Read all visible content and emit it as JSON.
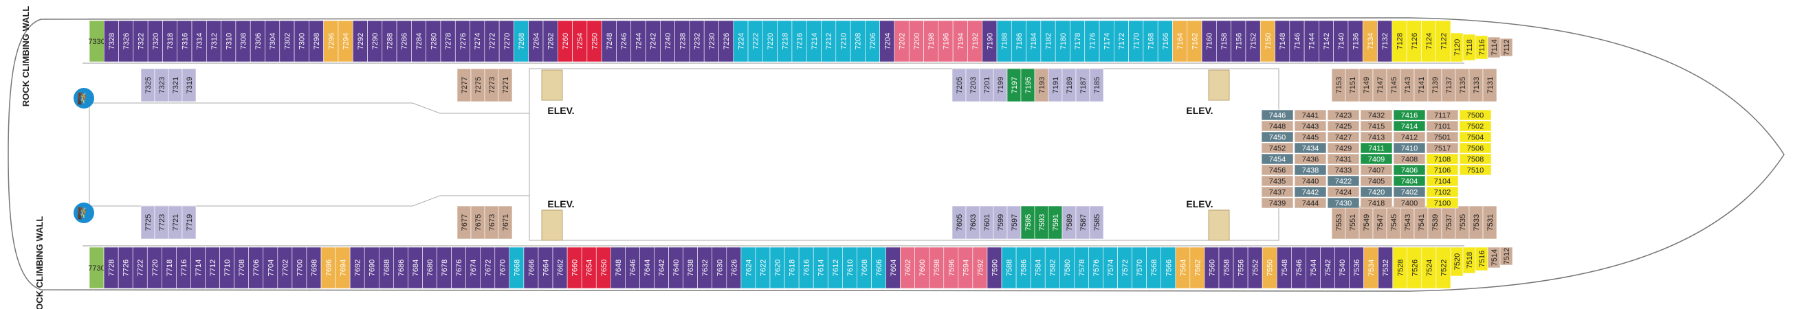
{
  "labels": {
    "rock_climbing_wall": "ROCK CLIMBING WALL",
    "elevator": "ELEV."
  },
  "colors": {
    "green_light": "#8bbe57",
    "purple": "#5b3d8f",
    "orange": "#f0b34a",
    "teal": "#1ab3cf",
    "red": "#e0213f",
    "pink": "#e86c86",
    "lavender": "#b9b6d8",
    "tan": "#cdac97",
    "slate": "#5f7f8c",
    "green": "#1e9548",
    "yellow": "#f5e81b"
  },
  "top_row": [
    {
      "n": "7330",
      "c": "green_light",
      "acc": true
    },
    {
      "n": "7328",
      "c": "purple"
    },
    {
      "n": "7326",
      "c": "purple"
    },
    {
      "n": "7322",
      "c": "purple"
    },
    {
      "n": "7320",
      "c": "purple"
    },
    {
      "n": "7318",
      "c": "purple"
    },
    {
      "n": "7316",
      "c": "purple"
    },
    {
      "n": "7314",
      "c": "purple"
    },
    {
      "n": "7312",
      "c": "purple"
    },
    {
      "n": "7310",
      "c": "purple"
    },
    {
      "n": "7308",
      "c": "purple"
    },
    {
      "n": "7306",
      "c": "purple"
    },
    {
      "n": "7304",
      "c": "purple"
    },
    {
      "n": "7302",
      "c": "purple"
    },
    {
      "n": "7300",
      "c": "purple"
    },
    {
      "n": "7298",
      "c": "purple"
    },
    {
      "n": "7296",
      "c": "orange"
    },
    {
      "n": "7294",
      "c": "orange"
    },
    {
      "n": "7292",
      "c": "purple"
    },
    {
      "n": "7290",
      "c": "purple"
    },
    {
      "n": "7288",
      "c": "purple"
    },
    {
      "n": "7286",
      "c": "purple"
    },
    {
      "n": "7284",
      "c": "purple"
    },
    {
      "n": "7280",
      "c": "purple"
    },
    {
      "n": "7278",
      "c": "purple"
    },
    {
      "n": "7276",
      "c": "purple"
    },
    {
      "n": "7274",
      "c": "purple"
    },
    {
      "n": "7272",
      "c": "purple"
    },
    {
      "n": "7270",
      "c": "purple"
    },
    {
      "n": "7268",
      "c": "teal"
    },
    {
      "n": "7264",
      "c": "purple"
    },
    {
      "n": "7262",
      "c": "purple"
    },
    {
      "n": "7260",
      "c": "red"
    },
    {
      "n": "7254",
      "c": "red"
    },
    {
      "n": "7250",
      "c": "red"
    },
    {
      "n": "7248",
      "c": "purple"
    },
    {
      "n": "7246",
      "c": "purple"
    },
    {
      "n": "7244",
      "c": "purple"
    },
    {
      "n": "7242",
      "c": "purple"
    },
    {
      "n": "7240",
      "c": "purple"
    },
    {
      "n": "7238",
      "c": "purple"
    },
    {
      "n": "7232",
      "c": "purple"
    },
    {
      "n": "7230",
      "c": "purple",
      "acc": true
    },
    {
      "n": "7226",
      "c": "purple",
      "acc": true
    },
    {
      "n": "7224",
      "c": "teal"
    },
    {
      "n": "7222",
      "c": "teal"
    },
    {
      "n": "7220",
      "c": "teal"
    },
    {
      "n": "7218",
      "c": "teal"
    },
    {
      "n": "7216",
      "c": "teal"
    },
    {
      "n": "7214",
      "c": "teal"
    },
    {
      "n": "7212",
      "c": "teal"
    },
    {
      "n": "7210",
      "c": "teal"
    },
    {
      "n": "7208",
      "c": "teal"
    },
    {
      "n": "7206",
      "c": "teal"
    },
    {
      "n": "7204",
      "c": "purple"
    },
    {
      "n": "7202",
      "c": "pink"
    },
    {
      "n": "7200",
      "c": "pink"
    },
    {
      "n": "7198",
      "c": "pink"
    },
    {
      "n": "7196",
      "c": "pink"
    },
    {
      "n": "7194",
      "c": "pink"
    },
    {
      "n": "7192",
      "c": "pink"
    },
    {
      "n": "7190",
      "c": "purple"
    },
    {
      "n": "7188",
      "c": "teal"
    },
    {
      "n": "7186",
      "c": "teal"
    },
    {
      "n": "7184",
      "c": "teal"
    },
    {
      "n": "7182",
      "c": "teal"
    },
    {
      "n": "7180",
      "c": "teal"
    },
    {
      "n": "7178",
      "c": "teal"
    },
    {
      "n": "7176",
      "c": "teal"
    },
    {
      "n": "7174",
      "c": "teal"
    },
    {
      "n": "7172",
      "c": "teal"
    },
    {
      "n": "7170",
      "c": "teal"
    },
    {
      "n": "7168",
      "c": "teal"
    },
    {
      "n": "7166",
      "c": "teal"
    },
    {
      "n": "7164",
      "c": "orange"
    },
    {
      "n": "7162",
      "c": "orange"
    },
    {
      "n": "7160",
      "c": "purple"
    },
    {
      "n": "7158",
      "c": "purple"
    },
    {
      "n": "7156",
      "c": "purple"
    },
    {
      "n": "7152",
      "c": "purple"
    },
    {
      "n": "7150",
      "c": "orange"
    },
    {
      "n": "7148",
      "c": "purple"
    },
    {
      "n": "7146",
      "c": "purple"
    },
    {
      "n": "7144",
      "c": "purple"
    },
    {
      "n": "7142",
      "c": "purple"
    },
    {
      "n": "7140",
      "c": "purple"
    },
    {
      "n": "7136",
      "c": "purple"
    },
    {
      "n": "7134",
      "c": "orange"
    },
    {
      "n": "7132",
      "c": "purple"
    },
    {
      "n": "7128",
      "c": "yellow"
    },
    {
      "n": "7126",
      "c": "yellow"
    },
    {
      "n": "7124",
      "c": "yellow"
    },
    {
      "n": "7122",
      "c": "yellow"
    }
  ],
  "top_end": [
    {
      "n": "7120",
      "c": "yellow"
    },
    {
      "n": "7118",
      "c": "yellow"
    },
    {
      "n": "7116",
      "c": "yellow"
    },
    {
      "n": "7114",
      "c": "tan"
    },
    {
      "n": "7112",
      "c": "tan"
    }
  ],
  "top_inner": [
    {
      "n": "7325",
      "c": "lavender"
    },
    {
      "n": "7323",
      "c": "lavender"
    },
    {
      "n": "7321",
      "c": "lavender"
    },
    {
      "n": "7319",
      "c": "lavender"
    },
    {
      "n": "7277",
      "c": "tan"
    },
    {
      "n": "7275",
      "c": "tan"
    },
    {
      "n": "7273",
      "c": "tan"
    },
    {
      "n": "7271",
      "c": "tan"
    },
    {
      "n": "7205",
      "c": "lavender"
    },
    {
      "n": "7203",
      "c": "lavender"
    },
    {
      "n": "7201",
      "c": "lavender"
    },
    {
      "n": "7199",
      "c": "lavender"
    },
    {
      "n": "7197",
      "c": "green"
    },
    {
      "n": "7195",
      "c": "green"
    },
    {
      "n": "7193",
      "c": "tan"
    },
    {
      "n": "7191",
      "c": "lavender"
    },
    {
      "n": "7189",
      "c": "lavender"
    },
    {
      "n": "7187",
      "c": "lavender"
    },
    {
      "n": "7185",
      "c": "lavender"
    },
    {
      "n": "7153",
      "c": "tan"
    },
    {
      "n": "7151",
      "c": "tan"
    },
    {
      "n": "7149",
      "c": "tan"
    },
    {
      "n": "7147",
      "c": "tan"
    },
    {
      "n": "7145",
      "c": "tan"
    },
    {
      "n": "7143",
      "c": "tan"
    },
    {
      "n": "7141",
      "c": "tan"
    },
    {
      "n": "7139",
      "c": "tan"
    },
    {
      "n": "7137",
      "c": "tan"
    },
    {
      "n": "7135",
      "c": "tan"
    },
    {
      "n": "7133",
      "c": "tan"
    },
    {
      "n": "7131",
      "c": "tan"
    }
  ],
  "bottom_row": [
    {
      "n": "7730",
      "c": "green_light",
      "acc": true
    },
    {
      "n": "7728",
      "c": "purple"
    },
    {
      "n": "7726",
      "c": "purple"
    },
    {
      "n": "7722",
      "c": "purple"
    },
    {
      "n": "7720",
      "c": "purple"
    },
    {
      "n": "7718",
      "c": "purple"
    },
    {
      "n": "7716",
      "c": "purple"
    },
    {
      "n": "7714",
      "c": "purple"
    },
    {
      "n": "7712",
      "c": "purple"
    },
    {
      "n": "7710",
      "c": "purple"
    },
    {
      "n": "7708",
      "c": "purple"
    },
    {
      "n": "7706",
      "c": "purple"
    },
    {
      "n": "7704",
      "c": "purple"
    },
    {
      "n": "7702",
      "c": "purple"
    },
    {
      "n": "7700",
      "c": "purple"
    },
    {
      "n": "7698",
      "c": "purple"
    },
    {
      "n": "7696",
      "c": "orange"
    },
    {
      "n": "7694",
      "c": "orange"
    },
    {
      "n": "7692",
      "c": "purple"
    },
    {
      "n": "7690",
      "c": "purple"
    },
    {
      "n": "7688",
      "c": "purple"
    },
    {
      "n": "7686",
      "c": "purple"
    },
    {
      "n": "7684",
      "c": "purple"
    },
    {
      "n": "7680",
      "c": "purple"
    },
    {
      "n": "7678",
      "c": "purple"
    },
    {
      "n": "7676",
      "c": "purple"
    },
    {
      "n": "7674",
      "c": "purple"
    },
    {
      "n": "7672",
      "c": "purple"
    },
    {
      "n": "7670",
      "c": "purple"
    },
    {
      "n": "7668",
      "c": "teal"
    },
    {
      "n": "7666",
      "c": "purple"
    },
    {
      "n": "7664",
      "c": "purple"
    },
    {
      "n": "7662",
      "c": "purple"
    },
    {
      "n": "7660",
      "c": "red"
    },
    {
      "n": "7654",
      "c": "red"
    },
    {
      "n": "7650",
      "c": "red"
    },
    {
      "n": "7648",
      "c": "purple"
    },
    {
      "n": "7646",
      "c": "purple"
    },
    {
      "n": "7644",
      "c": "purple"
    },
    {
      "n": "7642",
      "c": "purple"
    },
    {
      "n": "7640",
      "c": "purple"
    },
    {
      "n": "7638",
      "c": "purple"
    },
    {
      "n": "7632",
      "c": "purple"
    },
    {
      "n": "7630",
      "c": "purple",
      "acc": true
    },
    {
      "n": "7626",
      "c": "purple",
      "acc": true
    },
    {
      "n": "7624",
      "c": "teal"
    },
    {
      "n": "7622",
      "c": "teal"
    },
    {
      "n": "7620",
      "c": "teal"
    },
    {
      "n": "7618",
      "c": "teal"
    },
    {
      "n": "7616",
      "c": "teal"
    },
    {
      "n": "7614",
      "c": "teal"
    },
    {
      "n": "7612",
      "c": "teal"
    },
    {
      "n": "7610",
      "c": "teal"
    },
    {
      "n": "7608",
      "c": "teal"
    },
    {
      "n": "7606",
      "c": "teal"
    },
    {
      "n": "7604",
      "c": "purple"
    },
    {
      "n": "7602",
      "c": "pink"
    },
    {
      "n": "7600",
      "c": "pink"
    },
    {
      "n": "7598",
      "c": "pink"
    },
    {
      "n": "7596",
      "c": "pink"
    },
    {
      "n": "7594",
      "c": "pink"
    },
    {
      "n": "7592",
      "c": "pink"
    },
    {
      "n": "7590",
      "c": "purple"
    },
    {
      "n": "7588",
      "c": "teal"
    },
    {
      "n": "7586",
      "c": "teal"
    },
    {
      "n": "7584",
      "c": "teal"
    },
    {
      "n": "7582",
      "c": "teal"
    },
    {
      "n": "7580",
      "c": "teal"
    },
    {
      "n": "7578",
      "c": "teal"
    },
    {
      "n": "7576",
      "c": "teal"
    },
    {
      "n": "7574",
      "c": "teal"
    },
    {
      "n": "7572",
      "c": "teal"
    },
    {
      "n": "7570",
      "c": "teal"
    },
    {
      "n": "7568",
      "c": "teal"
    },
    {
      "n": "7566",
      "c": "teal"
    },
    {
      "n": "7564",
      "c": "orange"
    },
    {
      "n": "7562",
      "c": "orange"
    },
    {
      "n": "7560",
      "c": "purple"
    },
    {
      "n": "7558",
      "c": "purple"
    },
    {
      "n": "7556",
      "c": "purple"
    },
    {
      "n": "7552",
      "c": "purple"
    },
    {
      "n": "7550",
      "c": "orange"
    },
    {
      "n": "7548",
      "c": "purple"
    },
    {
      "n": "7546",
      "c": "purple"
    },
    {
      "n": "7544",
      "c": "purple"
    },
    {
      "n": "7542",
      "c": "purple"
    },
    {
      "n": "7540",
      "c": "purple"
    },
    {
      "n": "7536",
      "c": "purple"
    },
    {
      "n": "7534",
      "c": "orange"
    },
    {
      "n": "7532",
      "c": "purple"
    },
    {
      "n": "7528",
      "c": "yellow"
    },
    {
      "n": "7526",
      "c": "yellow"
    },
    {
      "n": "7524",
      "c": "yellow"
    },
    {
      "n": "7522",
      "c": "yellow"
    }
  ],
  "bottom_end": [
    {
      "n": "7520",
      "c": "yellow"
    },
    {
      "n": "7518",
      "c": "yellow"
    },
    {
      "n": "7516",
      "c": "yellow"
    },
    {
      "n": "7514",
      "c": "tan"
    },
    {
      "n": "7512",
      "c": "tan"
    }
  ],
  "bottom_inner": [
    {
      "n": "7725",
      "c": "lavender"
    },
    {
      "n": "7723",
      "c": "lavender"
    },
    {
      "n": "7721",
      "c": "lavender"
    },
    {
      "n": "7719",
      "c": "lavender"
    },
    {
      "n": "7677",
      "c": "tan"
    },
    {
      "n": "7675",
      "c": "tan"
    },
    {
      "n": "7673",
      "c": "tan"
    },
    {
      "n": "7671",
      "c": "tan"
    },
    {
      "n": "7605",
      "c": "lavender"
    },
    {
      "n": "7603",
      "c": "lavender"
    },
    {
      "n": "7601",
      "c": "lavender"
    },
    {
      "n": "7599",
      "c": "lavender"
    },
    {
      "n": "7597",
      "c": "lavender"
    },
    {
      "n": "7595",
      "c": "green"
    },
    {
      "n": "7593",
      "c": "green"
    },
    {
      "n": "7591",
      "c": "green"
    },
    {
      "n": "7589",
      "c": "lavender"
    },
    {
      "n": "7587",
      "c": "lavender"
    },
    {
      "n": "7585",
      "c": "lavender"
    },
    {
      "n": "7553",
      "c": "tan"
    },
    {
      "n": "7551",
      "c": "tan"
    },
    {
      "n": "7549",
      "c": "tan"
    },
    {
      "n": "7547",
      "c": "tan"
    },
    {
      "n": "7545",
      "c": "tan"
    },
    {
      "n": "7543",
      "c": "tan"
    },
    {
      "n": "7541",
      "c": "tan"
    },
    {
      "n": "7539",
      "c": "tan"
    },
    {
      "n": "7537",
      "c": "tan"
    },
    {
      "n": "7535",
      "c": "tan"
    },
    {
      "n": "7533",
      "c": "tan"
    },
    {
      "n": "7531",
      "c": "tan"
    }
  ],
  "forward_grid": [
    {
      "n": "7446",
      "c": "slate"
    },
    {
      "n": "7448",
      "c": "tan"
    },
    {
      "n": "7450",
      "c": "slate"
    },
    {
      "n": "7452",
      "c": "tan"
    },
    {
      "n": "7454",
      "c": "slate"
    },
    {
      "n": "7456",
      "c": "tan"
    },
    {
      "n": "7435",
      "c": "tan"
    },
    {
      "n": "7437",
      "c": "tan"
    },
    {
      "n": "7439",
      "c": "tan"
    },
    {
      "n": "7441",
      "c": "tan"
    },
    {
      "n": "7443",
      "c": "tan"
    },
    {
      "n": "7445",
      "c": "tan"
    },
    {
      "n": "7434",
      "c": "slate"
    },
    {
      "n": "7436",
      "c": "tan"
    },
    {
      "n": "7438",
      "c": "slate"
    },
    {
      "n": "7440",
      "c": "tan"
    },
    {
      "n": "7442",
      "c": "slate"
    },
    {
      "n": "7444",
      "c": "tan"
    },
    {
      "n": "7423",
      "c": "tan"
    },
    {
      "n": "7425",
      "c": "tan"
    },
    {
      "n": "7427",
      "c": "tan"
    },
    {
      "n": "7429",
      "c": "tan"
    },
    {
      "n": "7431",
      "c": "tan"
    },
    {
      "n": "7433",
      "c": "tan"
    },
    {
      "n": "7422",
      "c": "slate"
    },
    {
      "n": "7424",
      "c": "tan"
    },
    {
      "n": "7430",
      "c": "slate"
    },
    {
      "n": "7432",
      "c": "tan"
    },
    {
      "n": "7415",
      "c": "tan"
    },
    {
      "n": "7413",
      "c": "tan"
    },
    {
      "n": "7411",
      "c": "green"
    },
    {
      "n": "7409",
      "c": "green"
    },
    {
      "n": "7407",
      "c": "tan"
    },
    {
      "n": "7405",
      "c": "tan"
    },
    {
      "n": "7420",
      "c": "slate"
    },
    {
      "n": "7418",
      "c": "tan"
    },
    {
      "n": "7416",
      "c": "green"
    },
    {
      "n": "7414",
      "c": "green"
    },
    {
      "n": "7412",
      "c": "tan"
    },
    {
      "n": "7410",
      "c": "slate"
    },
    {
      "n": "7408",
      "c": "tan"
    },
    {
      "n": "7406",
      "c": "green"
    },
    {
      "n": "7404",
      "c": "green"
    },
    {
      "n": "7402",
      "c": "slate"
    },
    {
      "n": "7400",
      "c": "tan"
    },
    {
      "n": "7117",
      "c": "tan"
    },
    {
      "n": "7101",
      "c": "tan"
    },
    {
      "n": "7501",
      "c": "tan"
    },
    {
      "n": "7517",
      "c": "tan"
    },
    {
      "n": "7108",
      "c": "yellow"
    },
    {
      "n": "7106",
      "c": "yellow"
    },
    {
      "n": "7104",
      "c": "yellow"
    },
    {
      "n": "7102",
      "c": "yellow"
    },
    {
      "n": "7100",
      "c": "yellow"
    },
    {
      "n": "7500",
      "c": "yellow"
    },
    {
      "n": "7502",
      "c": "yellow"
    },
    {
      "n": "7504",
      "c": "yellow"
    },
    {
      "n": "7506",
      "c": "yellow"
    },
    {
      "n": "7508",
      "c": "yellow"
    },
    {
      "n": "7510",
      "c": "yellow"
    }
  ]
}
